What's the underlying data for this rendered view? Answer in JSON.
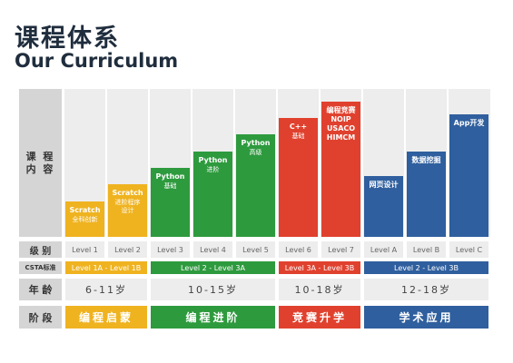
{
  "header": {
    "title_cn": "课程体系",
    "title_en": "Our Curriculum"
  },
  "row_labels": {
    "content": "课 程\n内 容",
    "level": "级 别",
    "csta": "CSTA标准",
    "age": "年 龄",
    "stage": "阶 段"
  },
  "courses": [
    {
      "title": "Scratch",
      "subtitle": "全科创新",
      "level": "Level 1",
      "color": "yellow"
    },
    {
      "title": "Scratch",
      "subtitle": "进阶程序\n设计",
      "level": "Level 2",
      "color": "yellow"
    },
    {
      "title": "Python",
      "subtitle": "基础",
      "level": "Level 3",
      "color": "green"
    },
    {
      "title": "Python",
      "subtitle": "进阶",
      "level": "Level 4",
      "color": "green"
    },
    {
      "title": "Python",
      "subtitle": "高级",
      "level": "Level 5",
      "color": "green"
    },
    {
      "title": "C++",
      "subtitle": "基础",
      "level": "Level 6",
      "color": "red"
    },
    {
      "title": "编程竞赛\nNOIP\nUSACO\nHIMCM",
      "subtitle": "",
      "level": "Level 7",
      "color": "red"
    },
    {
      "title": "网页设计",
      "subtitle": "",
      "level": "Level A",
      "color": "blue"
    },
    {
      "title": "数据挖掘",
      "subtitle": "",
      "level": "Level B",
      "color": "blue"
    },
    {
      "title": "App开发",
      "subtitle": "",
      "level": "Level C",
      "color": "blue"
    }
  ],
  "groups": [
    {
      "csta": "Level 1A - Level 1B",
      "age": "6-11岁",
      "stage": "编程启蒙",
      "color": "yellow"
    },
    {
      "csta": "Level 2 - Level 3A",
      "age": "10-15岁",
      "stage": "编程进阶",
      "color": "green"
    },
    {
      "csta": "Level 3A - Level 3B",
      "age": "10-18岁",
      "stage": "竞赛升学",
      "color": "red"
    },
    {
      "csta": "Level 2 - Level 3B",
      "age": "12-18岁",
      "stage": "学术应用",
      "color": "blue"
    }
  ],
  "colors": {
    "yellow": "#efb320",
    "green": "#2e9a3e",
    "red": "#e0412e",
    "blue": "#2f5f9e"
  }
}
